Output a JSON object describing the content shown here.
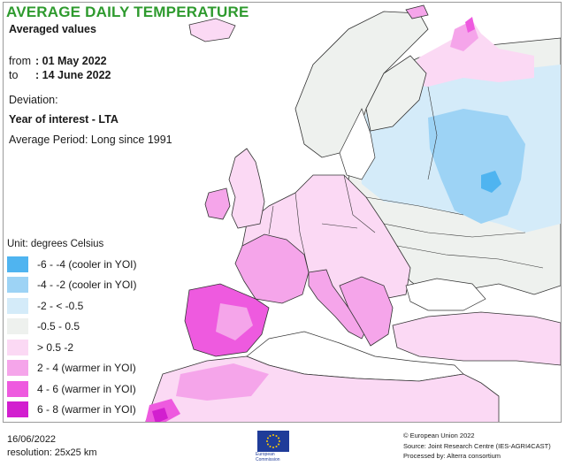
{
  "header": {
    "title": "AVERAGE DAILY TEMPERATURE",
    "subtitle": "Averaged values",
    "from_label": "from",
    "from_value": ": 01 May 2022",
    "to_label": "to",
    "to_value": ": 14 June 2022",
    "deviation": "Deviation:",
    "year_of_interest": "Year of interest - LTA",
    "average_period": "Average Period: Long since 1991"
  },
  "legend": {
    "unit": "Unit: degrees Celsius",
    "items": [
      {
        "label": "-6 - -4 (cooler in YOI)",
        "color": "#4fb4f0"
      },
      {
        "label": "-4 - -2 (cooler in YOI)",
        "color": "#9dd3f5"
      },
      {
        "label": "-2 - < -0.5",
        "color": "#d4ebf9"
      },
      {
        "label": "-0.5 - 0.5",
        "color": "#eef1ee"
      },
      {
        "label": "> 0.5 -2",
        "color": "#fbd9f4"
      },
      {
        "label": "2 - 4 (warmer in YOI)",
        "color": "#f5a5ea"
      },
      {
        "label": "4 - 6 (warmer in YOI)",
        "color": "#ee5adf"
      },
      {
        "label": "6 - 8 (warmer in YOI)",
        "color": "#d21fcf"
      }
    ]
  },
  "footer": {
    "date": "16/06/2022",
    "resolution": "resolution: 25x25 km",
    "copyright": "© European Union 2022",
    "source": "Source: Joint Research Centre (IES-AGRI4CAST)",
    "processed": "Processed by: Alterra consortium",
    "logo_line1": "European",
    "logo_line2": "Commission"
  },
  "colors": {
    "title": "#2e9a2e",
    "sea": "#ffffff",
    "border": "#333333",
    "eu_blue": "#1f3c99",
    "eu_star": "#ffcc00"
  }
}
